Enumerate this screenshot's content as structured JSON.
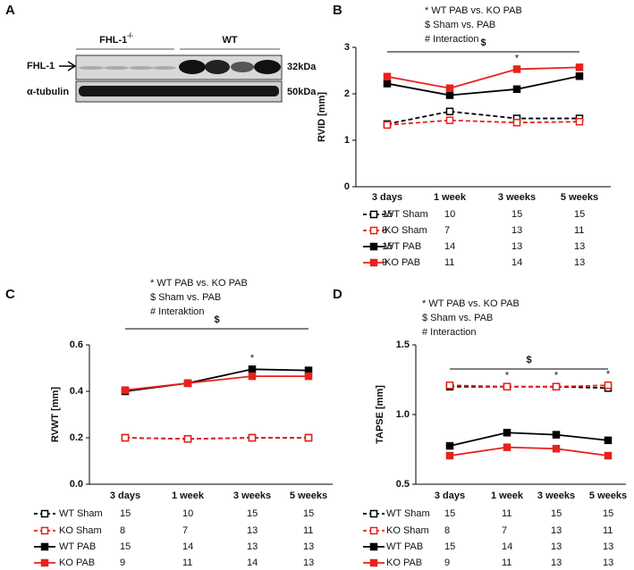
{
  "blot": {
    "panel": "A",
    "groups": [
      {
        "label": "FHL-1",
        "sup": "-/-"
      },
      {
        "label": "WT"
      }
    ],
    "rows": [
      {
        "label": "FHL-1",
        "size": "32kDa"
      },
      {
        "label": "α-tubulin",
        "size": "50kDa"
      }
    ]
  },
  "chart_data": [
    {
      "type": "line",
      "panel": "B",
      "annotations": [
        "* WT PAB vs. KO PAB",
        "$ Sham vs. PAB",
        "# Interaction"
      ],
      "ylabel": "RVID [mm]",
      "ylim": [
        0,
        3
      ],
      "yticks": [
        0,
        1,
        2,
        3
      ],
      "categories": [
        "3 days",
        "1 week",
        "3 weeks",
        "5 weeks"
      ],
      "bracket_label": "$",
      "stars": [
        null,
        null,
        "*",
        null
      ],
      "series": [
        {
          "name": "WT Sham",
          "color": "#000000",
          "linestyle": "dashed",
          "marker": "open",
          "values": [
            1.35,
            1.62,
            1.47,
            1.47
          ],
          "n": [
            15,
            10,
            15,
            15
          ]
        },
        {
          "name": "KO Sham",
          "color": "#e8211c",
          "linestyle": "dashed",
          "marker": "open",
          "values": [
            1.33,
            1.43,
            1.38,
            1.4
          ],
          "n": [
            8,
            7,
            13,
            11
          ]
        },
        {
          "name": "WT PAB",
          "color": "#000000",
          "linestyle": "solid",
          "marker": "filled",
          "values": [
            2.22,
            1.97,
            2.1,
            2.38
          ],
          "n": [
            15,
            14,
            13,
            13
          ]
        },
        {
          "name": "KO PAB",
          "color": "#e8211c",
          "linestyle": "solid",
          "marker": "filled",
          "values": [
            2.37,
            2.12,
            2.53,
            2.57
          ],
          "n": [
            9,
            11,
            14,
            13
          ]
        }
      ]
    },
    {
      "type": "line",
      "panel": "C",
      "annotations": [
        "* WT PAB vs. KO PAB",
        "$ Sham vs. PAB",
        "# Interaktion"
      ],
      "ylabel": "RVWT [mm]",
      "ylim": [
        0,
        0.6
      ],
      "yticks": [
        {
          "value": 0,
          "label": "0.0"
        },
        0.2,
        0.4,
        0.6
      ],
      "categories": [
        "3 days",
        "1 week",
        "3 weeks",
        "5 weeks"
      ],
      "bracket_label": "$",
      "stars": [
        null,
        null,
        "*",
        null
      ],
      "series": [
        {
          "name": "WT Sham",
          "color": "#000000",
          "linestyle": "dashed",
          "marker": "open",
          "values": [
            0.2,
            0.195,
            0.2,
            0.2
          ],
          "n": [
            15,
            10,
            15,
            15
          ]
        },
        {
          "name": "KO Sham",
          "color": "#e8211c",
          "linestyle": "dashed",
          "marker": "open",
          "values": [
            0.2,
            0.195,
            0.2,
            0.2
          ],
          "n": [
            8,
            7,
            13,
            11
          ]
        },
        {
          "name": "WT PAB",
          "color": "#000000",
          "linestyle": "solid",
          "marker": "filled",
          "values": [
            0.4,
            0.435,
            0.495,
            0.49
          ],
          "n": [
            15,
            14,
            13,
            13
          ]
        },
        {
          "name": "KO PAB",
          "color": "#e8211c",
          "linestyle": "solid",
          "marker": "filled",
          "values": [
            0.405,
            0.435,
            0.465,
            0.465
          ],
          "n": [
            9,
            11,
            14,
            13
          ]
        }
      ]
    },
    {
      "type": "line",
      "panel": "D",
      "annotations": [
        "* WT PAB vs. KO PAB",
        "$ Sham vs. PAB",
        "# Interaction"
      ],
      "ylabel": "TAPSE [mm]",
      "ylim": [
        0.5,
        1.5
      ],
      "yticks": [
        0.5,
        {
          "value": 1,
          "label": "1.0"
        },
        1.5
      ],
      "categories": [
        "3 days",
        "1 week",
        "3 weeks",
        "5 weeks"
      ],
      "bracket_label": "$",
      "stars": [
        null,
        "*",
        "*",
        "*"
      ],
      "series": [
        {
          "name": "WT Sham",
          "color": "#000000",
          "linestyle": "dashed",
          "marker": "open",
          "values": [
            1.2,
            1.2,
            1.2,
            1.19
          ],
          "n": [
            15,
            11,
            15,
            15
          ]
        },
        {
          "name": "KO Sham",
          "color": "#e8211c",
          "linestyle": "dashed",
          "marker": "open",
          "values": [
            1.21,
            1.2,
            1.2,
            1.21
          ],
          "n": [
            8,
            7,
            13,
            11
          ]
        },
        {
          "name": "WT PAB",
          "color": "#000000",
          "linestyle": "solid",
          "marker": "filled",
          "values": [
            0.775,
            0.87,
            0.855,
            0.815
          ],
          "n": [
            15,
            14,
            13,
            13
          ]
        },
        {
          "name": "KO PAB",
          "color": "#e8211c",
          "linestyle": "solid",
          "marker": "filled",
          "values": [
            0.705,
            0.765,
            0.755,
            0.705
          ],
          "n": [
            9,
            11,
            13,
            13
          ]
        }
      ]
    }
  ]
}
